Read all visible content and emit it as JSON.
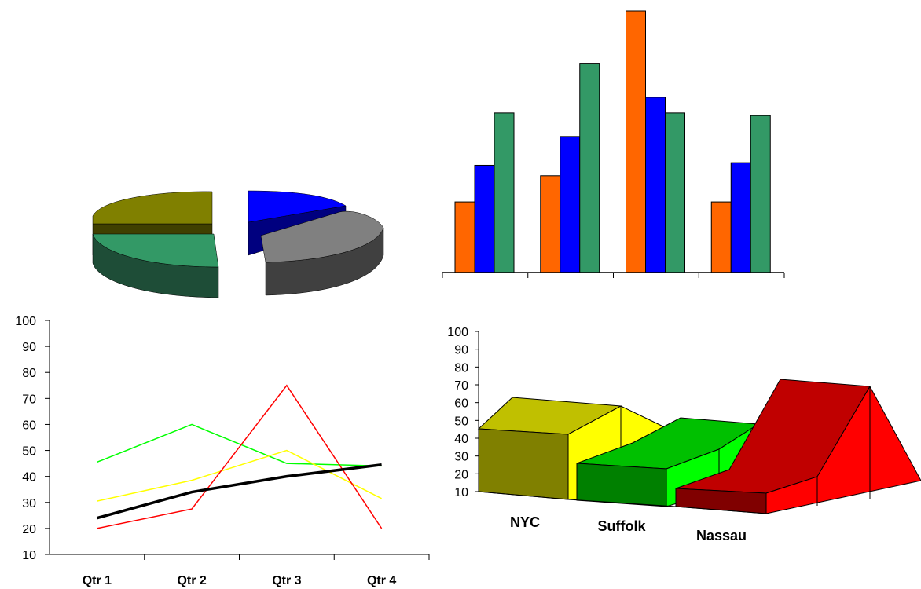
{
  "chart_data": [
    {
      "type": "pie",
      "slices": [
        {
          "value": 16,
          "color": "#0000FF"
        },
        {
          "value": 37,
          "color": "#808080"
        },
        {
          "value": 24,
          "color": "#339966"
        },
        {
          "value": 23,
          "color": "#808000"
        }
      ]
    },
    {
      "type": "bar",
      "categories": [
        "",
        "",
        "",
        ""
      ],
      "series": [
        {
          "values": [
            27,
            37,
            100,
            27
          ],
          "color": "#FF6600"
        },
        {
          "values": [
            41,
            52,
            67,
            42
          ],
          "color": "#0000FF"
        },
        {
          "values": [
            61,
            80,
            61,
            60
          ],
          "color": "#339966"
        }
      ],
      "ylim": [
        0,
        100
      ]
    },
    {
      "type": "line",
      "categories": [
        "Qtr 1",
        "Qtr 2",
        "Qtr 3",
        "Qtr 4"
      ],
      "series": [
        {
          "values": [
            45.5,
            60,
            45,
            44
          ],
          "color": "#00FF00"
        },
        {
          "values": [
            30.5,
            38.5,
            50,
            31.5
          ],
          "color": "#FFFF00"
        },
        {
          "values": [
            20,
            27.5,
            75,
            20
          ],
          "color": "#FF0000"
        },
        {
          "values": [
            24,
            34,
            40,
            44.5
          ],
          "color": "#000000"
        }
      ],
      "yticks": [
        "10",
        "20",
        "30",
        "40",
        "50",
        "60",
        "70",
        "80",
        "90",
        "100"
      ],
      "ylim": [
        10,
        100
      ]
    },
    {
      "type": "area",
      "categories": [
        "NYC",
        "Suffolk",
        "Nassau"
      ],
      "series": [
        {
          "values": [
            45,
            58,
            44
          ],
          "color": "#808000"
        },
        {
          "values": [
            26,
            35,
            50
          ],
          "color": "#008000"
        },
        {
          "values": [
            10,
            18,
            69
          ],
          "color": "#C00000"
        }
      ],
      "yticks": [
        "10",
        "20",
        "30",
        "40",
        "50",
        "60",
        "70",
        "80",
        "90",
        "100"
      ],
      "ylim": [
        10,
        100
      ]
    }
  ]
}
